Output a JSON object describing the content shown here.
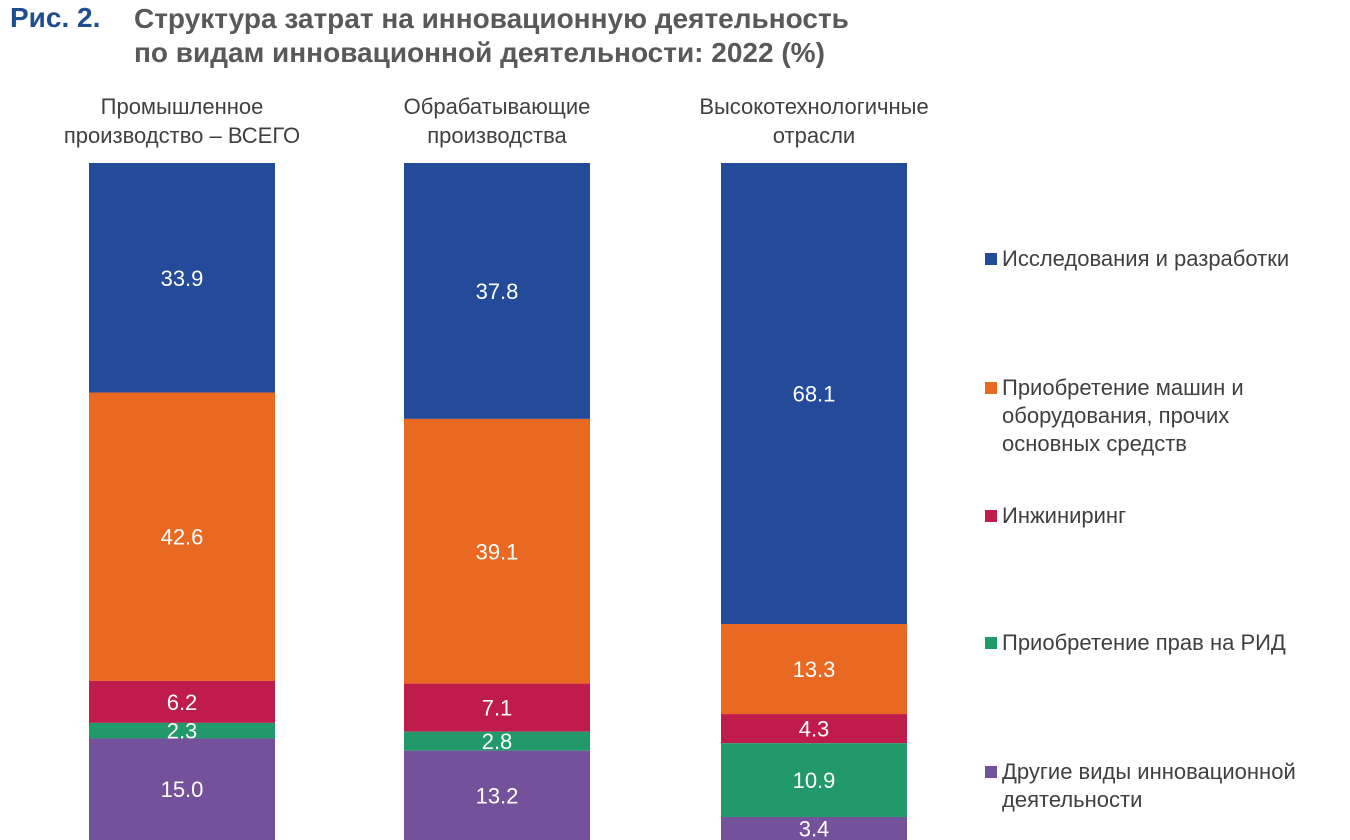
{
  "figure": {
    "label": "Рис. 2.",
    "title_line1": "Структура затрат на инновационную деятельность",
    "title_line2": "по видам инновационной деятельности: 2022 (%)"
  },
  "columns": [
    {
      "line1": "Промышленное",
      "line2": "производство – ВСЕГО"
    },
    {
      "line1": "Обрабатывающие",
      "line2": "производства"
    },
    {
      "line1": "Высокотехнологичные",
      "line2": "отрасли"
    }
  ],
  "legend": [
    {
      "lines": [
        "Исследования и разработки"
      ]
    },
    {
      "lines": [
        "Приобретение машин и",
        "оборудования, прочих",
        "основных средств"
      ]
    },
    {
      "lines": [
        "Инжиниринг"
      ]
    },
    {
      "lines": [
        "Приобретение прав на РИД"
      ]
    },
    {
      "lines": [
        "Другие виды инновационной",
        "деятельности"
      ]
    }
  ],
  "chart_data": {
    "type": "bar",
    "stacked": true,
    "percent": true,
    "title": "Структура затрат на инновационную деятельность по видам инновационной деятельности: 2022 (%)",
    "categories": [
      "Промышленное производство – ВСЕГО",
      "Обрабатывающие производства",
      "Высокотехнологичные отрасли"
    ],
    "series": [
      {
        "name": "Исследования и разработки",
        "color": "#244a9a",
        "values": [
          33.9,
          37.8,
          68.1
        ]
      },
      {
        "name": "Приобретение машин и оборудования, прочих основных средств",
        "color": "#e96822",
        "values": [
          42.6,
          39.1,
          13.3
        ]
      },
      {
        "name": "Инжиниринг",
        "color": "#bf1b4b",
        "values": [
          6.2,
          7.1,
          4.3
        ]
      },
      {
        "name": "Приобретение прав на РИД",
        "color": "#22996a",
        "values": [
          2.3,
          2.8,
          10.9
        ]
      },
      {
        "name": "Другие виды инновационной деятельности",
        "color": "#73529b",
        "values": [
          15.0,
          13.2,
          3.4
        ]
      }
    ],
    "label_color": "#ffffff",
    "legend_position": "right"
  }
}
